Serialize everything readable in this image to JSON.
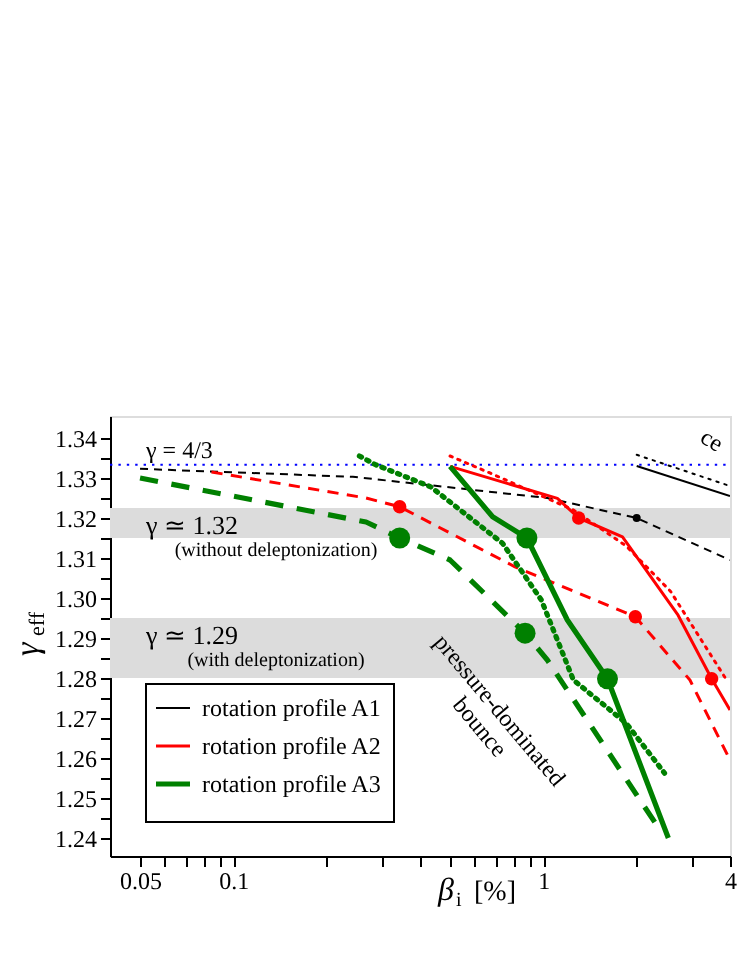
{
  "chart_data": {
    "type": "line",
    "xlabel": "β$_{i}$ [%]",
    "ylabel": "γ$_{eff}$",
    "log": "x",
    "grid": false,
    "legend": "bottom left",
    "xlim": [
      0.04,
      4
    ],
    "ylim": [
      1.2355,
      1.3455
    ],
    "xticks": [
      0.05,
      {
        "value": 0.06,
        "label": null
      },
      {
        "value": 0.07,
        "label": null
      },
      {
        "value": 0.08,
        "label": null
      },
      {
        "value": 0.09,
        "label": null
      },
      0.1,
      {
        "value": 0.2,
        "label": null
      },
      {
        "value": 0.3,
        "label": null
      },
      {
        "value": 0.4,
        "label": null
      },
      {
        "value": 0.5,
        "label": null
      },
      {
        "value": 0.6,
        "label": null
      },
      {
        "value": 0.7,
        "label": null
      },
      {
        "value": 0.8,
        "label": null
      },
      {
        "value": 0.9,
        "label": null
      },
      1,
      {
        "value": 2,
        "label": null
      },
      {
        "value": 3,
        "label": null
      },
      4
    ],
    "yticks": [
      1.24,
      {
        "value": 1.245,
        "label": null
      },
      1.25,
      {
        "value": 1.255,
        "label": null
      },
      1.26,
      {
        "value": 1.265,
        "label": null
      },
      1.27,
      {
        "value": 1.275,
        "label": null
      },
      1.28,
      {
        "value": 1.285,
        "label": null
      },
      1.29,
      {
        "value": 1.295,
        "label": null
      },
      {
        "value": 1.3,
        "label": "1.30"
      },
      {
        "value": 1.305,
        "label": null
      },
      1.31,
      {
        "value": 1.315,
        "label": null
      },
      1.32,
      {
        "value": 1.325,
        "label": null
      },
      1.33,
      {
        "value": 1.335,
        "label": null
      },
      1.34
    ],
    "bands": [
      {
        "axis": "y",
        "from": 1.315,
        "to": 1.3225,
        "label": "γ ≃ 1.32\n(without deleptonization)",
        "color": "#dcdcdc"
      },
      {
        "axis": "y",
        "from": 1.28,
        "to": 1.295,
        "label": "γ ≃ 1.29\n(with deleptonization)",
        "color": "#dcdcdc"
      }
    ],
    "ref_lines": [
      {
        "axis": "y",
        "value": 1.333333,
        "color": "#0000ff",
        "line_style": "dotted"
      }
    ],
    "annotations": [
      "pressure-dominated bounce",
      "ce",
      "γ = 4/3"
    ],
    "series": [
      {
        "name": "rotation profile A1",
        "color": "#000000",
        "type": "line",
        "line_style": "solid",
        "x": [
          2.0,
          4.0
        ],
        "values": [
          1.333,
          1.3255
        ]
      },
      {
        "color": "#000000",
        "type": "line",
        "line_style": "dotted",
        "x": [
          2.0,
          4.0
        ],
        "values": [
          1.3358,
          1.328
        ]
      },
      {
        "color": "#000000",
        "type": "line",
        "line_style": "dashed",
        "x": [
          0.05,
          0.243,
          1.03,
          2.0,
          4.0
        ],
        "values": [
          1.3323,
          1.3303,
          1.325,
          1.32,
          1.3095
        ]
      },
      {
        "name": "rotation profile A2",
        "color": "#ff0000",
        "type": "line",
        "line_style": "solid",
        "x": [
          0.5,
          1.11,
          1.3,
          1.8,
          2.72,
          3.49,
          4.0
        ],
        "values": [
          1.3329,
          1.3249,
          1.32,
          1.3153,
          1.2957,
          1.2798,
          1.272
        ]
      },
      {
        "color": "#ff0000",
        "type": "line",
        "line_style": "dotted",
        "x": [
          0.5,
          0.675,
          1.25,
          1.85,
          2.57,
          3.9
        ],
        "values": [
          1.3355,
          1.3312,
          1.322,
          1.313,
          1.3017,
          1.2795
        ]
      },
      {
        "color": "#ff0000",
        "type": "line",
        "line_style": "dashed",
        "x": [
          0.085,
          0.268,
          0.344,
          0.81,
          1.98,
          2.97,
          4.0
        ],
        "values": [
          1.3315,
          1.325,
          1.3228,
          1.3078,
          1.2953,
          1.2795,
          1.2595
        ]
      },
      {
        "name": "rotation profile A3",
        "color": "#008000",
        "type": "line",
        "line_style": "solid",
        "x": [
          0.5,
          0.686,
          0.885,
          1.195,
          1.61,
          2.53
        ],
        "values": [
          1.3329,
          1.3203,
          1.315,
          1.2945,
          1.2798,
          1.24
        ]
      },
      {
        "color": "#008000",
        "type": "line",
        "line_style": "dotted",
        "x": [
          0.255,
          0.288,
          0.433,
          0.738,
          0.985,
          1.25,
          1.85,
          2.46
        ],
        "values": [
          1.3355,
          1.3333,
          1.3278,
          1.3137,
          1.2995,
          1.2795,
          1.2687,
          1.2562
        ]
      },
      {
        "color": "#008000",
        "type": "line",
        "line_style": "dashed",
        "x": [
          0.05,
          0.268,
          0.344,
          0.5,
          0.873,
          1.03,
          2.4
        ],
        "values": [
          1.33,
          1.319,
          1.315,
          1.3095,
          1.2912,
          1.2845,
          1.2415
        ]
      },
      {
        "color": "#000000",
        "type": "scatter",
        "marker": "circle",
        "x": [
          2.0
        ],
        "values": [
          1.32
        ]
      },
      {
        "color": "#ff0000",
        "type": "scatter",
        "marker": "circle",
        "x": [
          1.3,
          3.49
        ],
        "values": [
          1.32,
          1.2798
        ]
      },
      {
        "color": "#ff0000",
        "type": "scatter",
        "marker": "circle",
        "x": [
          0.344,
          1.98
        ],
        "values": [
          1.3228,
          1.2953
        ]
      },
      {
        "color": "#008000",
        "type": "scatter",
        "marker": "circle",
        "x": [
          0.885,
          1.61
        ],
        "values": [
          1.315,
          1.2798
        ]
      },
      {
        "color": "#008000",
        "type": "scatter",
        "marker": "circle",
        "x": [
          0.344,
          0.873
        ],
        "values": [
          1.315,
          1.2912
        ]
      }
    ]
  }
}
